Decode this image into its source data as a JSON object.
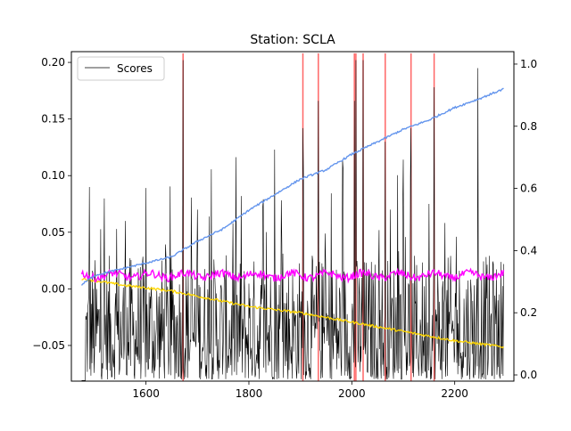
{
  "chart_data": {
    "type": "line",
    "title": "Station: SCLA",
    "xlabel": "",
    "ylabel": "",
    "ylabel_right": "",
    "grid": false,
    "legend": {
      "placement": "upper-left",
      "entries": [
        "Scores"
      ]
    },
    "x_range": [
      1475,
      2295
    ],
    "xlim": [
      1455,
      2315
    ],
    "ylim_left": [
      -0.0815,
      0.2095
    ],
    "ylim_right": [
      -0.02,
      1.04
    ],
    "x_ticks": [
      1600,
      1800,
      2000,
      2200
    ],
    "y_ticks_left": [
      -0.05,
      0.0,
      0.05,
      0.1,
      0.15,
      0.2
    ],
    "y_ticks_left_labels": [
      "−0.05",
      "0.00",
      "0.05",
      "0.10",
      "0.15",
      "0.20"
    ],
    "y_ticks_right": [
      0.0,
      0.2,
      0.4,
      0.6,
      0.8,
      1.0
    ],
    "y_ticks_right_labels": [
      "0.0",
      "0.2",
      "0.4",
      "0.6",
      "0.8",
      "1.0"
    ],
    "series": [
      {
        "name": "Scores",
        "axis": "left",
        "color": "#000000"
      },
      {
        "axis": "right",
        "color": "#6495ed",
        "anchors": [
          [
            1475,
            0.29
          ],
          [
            1500,
            0.32
          ],
          [
            1550,
            0.34
          ],
          [
            1600,
            0.36
          ],
          [
            1650,
            0.38
          ],
          [
            1700,
            0.43
          ],
          [
            1750,
            0.47
          ],
          [
            1800,
            0.53
          ],
          [
            1850,
            0.58
          ],
          [
            1900,
            0.63
          ],
          [
            1950,
            0.66
          ],
          [
            2000,
            0.71
          ],
          [
            2050,
            0.75
          ],
          [
            2100,
            0.79
          ],
          [
            2150,
            0.82
          ],
          [
            2200,
            0.86
          ],
          [
            2250,
            0.89
          ],
          [
            2295,
            0.92
          ]
        ]
      },
      {
        "axis": "right",
        "color": "#ff00ff",
        "baseline": 0.32
      },
      {
        "axis": "right",
        "color": "#ffd700",
        "anchors": [
          [
            1475,
            0.31
          ],
          [
            1550,
            0.29
          ],
          [
            1650,
            0.27
          ],
          [
            1800,
            0.22
          ],
          [
            1900,
            0.2
          ],
          [
            2000,
            0.17
          ],
          [
            2100,
            0.14
          ],
          [
            2200,
            0.11
          ],
          [
            2295,
            0.09
          ]
        ]
      }
    ],
    "anomalies": {
      "color": "#ff0000",
      "x": [
        1672,
        1905,
        1935,
        2005,
        2008,
        2022,
        2065,
        2115,
        2160
      ],
      "y_range": [
        -0.0815,
        0.208
      ]
    }
  }
}
